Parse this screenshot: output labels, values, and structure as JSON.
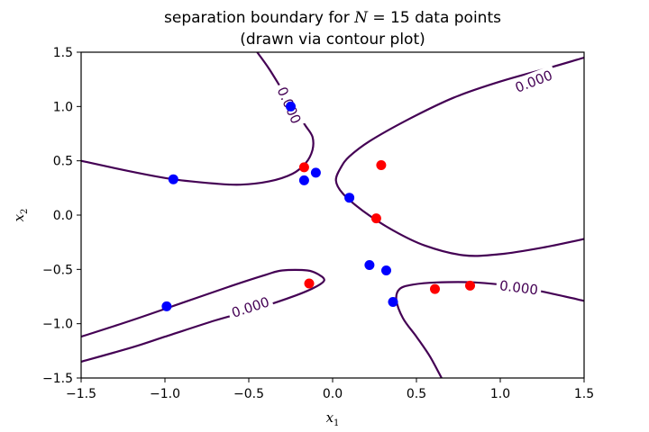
{
  "chart_data": {
    "type": "scatter",
    "title": "separation boundary for N = 15 data points",
    "title_prefix": "separation boundary for ",
    "title_var": "N",
    "title_suffix": " = 15 data points",
    "subtitle": "(drawn via contour plot)",
    "xlabel": "x",
    "xlabel_sub": "1",
    "ylabel": "x",
    "ylabel_sub": "2",
    "xlim": [
      -1.5,
      1.5
    ],
    "ylim": [
      -1.5,
      1.5
    ],
    "xticks": [
      -1.5,
      -1.0,
      -0.5,
      0.0,
      0.5,
      1.0,
      1.5
    ],
    "xtick_labels": [
      "−1.5",
      "−1.0",
      "−0.5",
      "0.0",
      "0.5",
      "1.0",
      "1.5"
    ],
    "yticks": [
      -1.5,
      -1.0,
      -0.5,
      0.0,
      0.5,
      1.0,
      1.5
    ],
    "ytick_labels": [
      "−1.5",
      "−1.0",
      "−0.5",
      "0.0",
      "0.5",
      "1.0",
      "1.5"
    ],
    "grid": false,
    "series": [
      {
        "color": "#0000ff",
        "points": [
          [
            -0.25,
            1.0
          ],
          [
            -0.1,
            0.39
          ],
          [
            -0.17,
            0.32
          ],
          [
            -0.95,
            0.33
          ],
          [
            0.1,
            0.16
          ],
          [
            0.22,
            -0.46
          ],
          [
            0.32,
            -0.51
          ],
          [
            0.36,
            -0.8
          ],
          [
            -0.99,
            -0.84
          ]
        ]
      },
      {
        "color": "#ff0000",
        "points": [
          [
            -0.17,
            0.44
          ],
          [
            0.29,
            0.46
          ],
          [
            0.26,
            -0.03
          ],
          [
            -0.14,
            -0.63
          ],
          [
            0.61,
            -0.68
          ],
          [
            0.82,
            -0.65
          ]
        ]
      }
    ],
    "contour": {
      "level_label": "0.000",
      "color": "#440154",
      "curves": [
        [
          [
            -0.45,
            1.5
          ],
          [
            -0.38,
            1.35
          ],
          [
            -0.3,
            1.15
          ],
          [
            -0.22,
            0.95
          ],
          [
            -0.16,
            0.82
          ],
          [
            -0.12,
            0.72
          ],
          [
            -0.12,
            0.6
          ],
          [
            -0.16,
            0.48
          ],
          [
            -0.24,
            0.38
          ],
          [
            -0.38,
            0.31
          ],
          [
            -0.55,
            0.28
          ],
          [
            -0.7,
            0.29
          ],
          [
            -0.95,
            0.33
          ],
          [
            -1.2,
            0.4
          ],
          [
            -1.5,
            0.5
          ]
        ],
        [
          [
            1.5,
            1.45
          ],
          [
            1.3,
            1.36
          ],
          [
            1.0,
            1.23
          ],
          [
            0.72,
            1.08
          ],
          [
            0.45,
            0.88
          ],
          [
            0.22,
            0.68
          ],
          [
            0.1,
            0.54
          ],
          [
            0.05,
            0.44
          ],
          [
            0.02,
            0.32
          ],
          [
            0.06,
            0.2
          ],
          [
            0.18,
            0.04
          ],
          [
            0.36,
            -0.14
          ],
          [
            0.55,
            -0.28
          ],
          [
            0.78,
            -0.37
          ],
          [
            1.0,
            -0.36
          ],
          [
            1.25,
            -0.3
          ],
          [
            1.5,
            -0.22
          ]
        ],
        [
          [
            -1.5,
            -1.12
          ],
          [
            -1.2,
            -0.97
          ],
          [
            -0.9,
            -0.81
          ],
          [
            -0.6,
            -0.65
          ],
          [
            -0.4,
            -0.55
          ],
          [
            -0.3,
            -0.51
          ],
          [
            -0.15,
            -0.51
          ],
          [
            -0.08,
            -0.55
          ],
          [
            -0.05,
            -0.6
          ],
          [
            -0.1,
            -0.66
          ],
          [
            -0.22,
            -0.74
          ],
          [
            -0.45,
            -0.86
          ],
          [
            -0.7,
            -0.97
          ],
          [
            -1.0,
            -1.12
          ],
          [
            -1.2,
            -1.22
          ],
          [
            -1.5,
            -1.35
          ]
        ],
        [
          [
            1.5,
            -0.79
          ],
          [
            1.3,
            -0.72
          ],
          [
            1.1,
            -0.66
          ],
          [
            0.85,
            -0.62
          ],
          [
            0.62,
            -0.62
          ],
          [
            0.48,
            -0.64
          ],
          [
            0.4,
            -0.68
          ],
          [
            0.38,
            -0.78
          ],
          [
            0.42,
            -0.95
          ],
          [
            0.5,
            -1.12
          ],
          [
            0.58,
            -1.3
          ],
          [
            0.65,
            -1.5
          ]
        ]
      ],
      "labels": [
        {
          "x": -0.26,
          "y": 1.01,
          "angle": 66
        },
        {
          "x": 1.2,
          "y": 1.23,
          "angle": -21
        },
        {
          "x": -0.49,
          "y": -0.85,
          "angle": -18
        },
        {
          "x": 1.11,
          "y": -0.67,
          "angle": 7
        }
      ]
    }
  }
}
